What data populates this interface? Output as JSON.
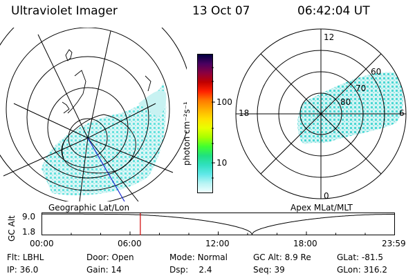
{
  "header": {
    "instrument": "Ultraviolet Imager",
    "date": "13 Oct 07",
    "time": "06:42:04 UT"
  },
  "colorbar": {
    "unit_label": "photon cm⁻²s⁻¹",
    "ticks": [
      {
        "label": "100",
        "value": 100
      },
      {
        "label": "10",
        "value": 10
      }
    ],
    "scale": "log",
    "colors": [
      "#000040",
      "#4a0060",
      "#8a0040",
      "#c00000",
      "#ff2000",
      "#ff7a00",
      "#ffb000",
      "#ffe000",
      "#e8ff00",
      "#a8ff00",
      "#40ff30",
      "#20e080",
      "#30e0c0",
      "#60e8e8",
      "#b8f4f4",
      "#f0ffff"
    ]
  },
  "left_map": {
    "label": "Geographic Lat/Lon"
  },
  "right_map": {
    "label": "Apex  MLat/MLT",
    "mlt_labels": {
      "top": "12",
      "left": "18",
      "right": "6",
      "bottom": "0"
    },
    "mlat_labels": [
      "60",
      "70",
      "80"
    ]
  },
  "altitude_plot": {
    "ylabel": "GC Alt",
    "yticks": [
      "9.0",
      "1.8"
    ],
    "xticks": [
      "00:00",
      "06:00",
      "12:00",
      "18:00",
      "23:59"
    ],
    "current_time_hours": 6.7,
    "marker_color": "#d00000"
  },
  "footer": {
    "row1": [
      {
        "label": "Flt:",
        "value": "LBHL"
      },
      {
        "label": "Door:",
        "value": "Open"
      },
      {
        "label": "Mode:",
        "value": "Normal"
      },
      {
        "label": "GC Alt:",
        "value": "8.9 Re"
      },
      {
        "label": "GLat:",
        "value": "-81.5"
      }
    ],
    "row2": [
      {
        "label": "IP:",
        "value": "36.0"
      },
      {
        "label": "Gain:",
        "value": "14"
      },
      {
        "label": "Dsp:",
        "value": "2.4"
      },
      {
        "label": "Seq:",
        "value": "39"
      },
      {
        "label": "GLon:",
        "value": "316.2"
      }
    ]
  }
}
